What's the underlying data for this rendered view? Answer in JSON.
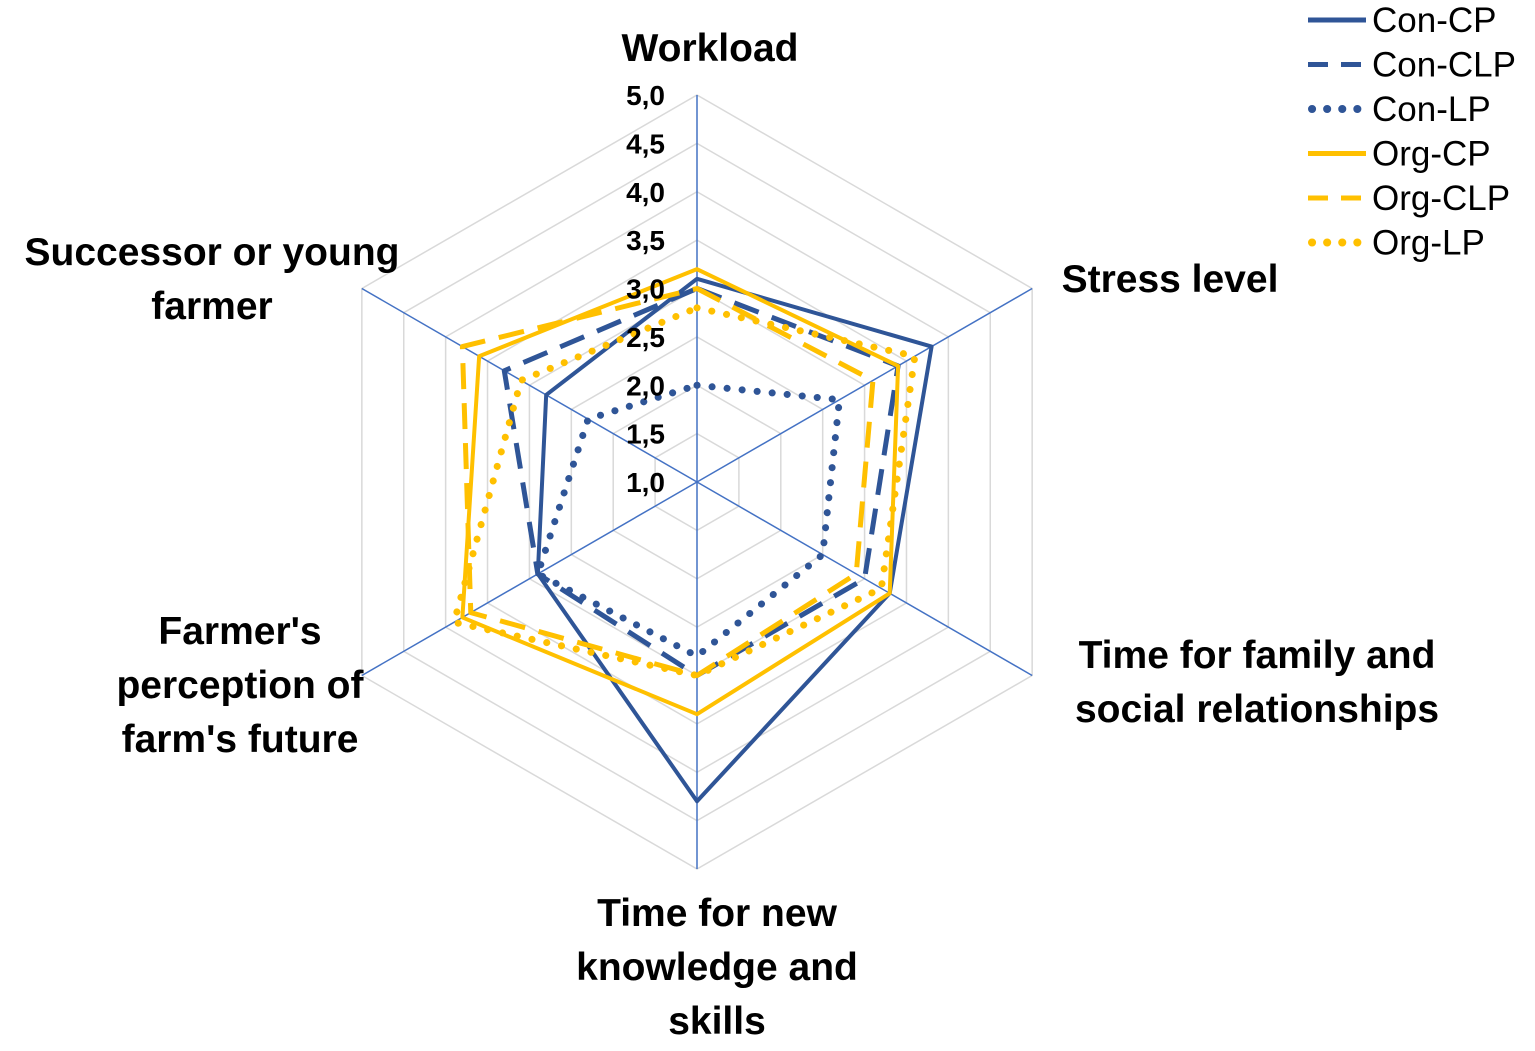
{
  "chart_data": {
    "type": "radar",
    "axes": [
      "Workload",
      "Stress level",
      "Time for family and social relationships",
      "Time for new knowledge and skills",
      "Farmer's perception of farm's future",
      "Successor or young farmer"
    ],
    "axis_label_lines": [
      [
        "Workload"
      ],
      [
        "Stress level"
      ],
      [
        "Time for family and",
        "social relationships"
      ],
      [
        "Time for new",
        "knowledge and",
        "skills"
      ],
      [
        "Farmer's",
        "perception of",
        "farm's future"
      ],
      [
        "Successor or young",
        "farmer"
      ]
    ],
    "rlim": [
      1.0,
      5.0
    ],
    "ticks": [
      "1,0",
      "1,5",
      "2,0",
      "2,5",
      "3,0",
      "3,5",
      "4,0",
      "4,5",
      "5,0"
    ],
    "grid": true,
    "legend_position": "top-right",
    "series": [
      {
        "name": "Con-CP",
        "color": "#2F5597",
        "dash": "solid",
        "values": [
          3.1,
          3.8,
          3.3,
          4.3,
          2.9,
          2.8
        ]
      },
      {
        "name": "Con-CLP",
        "color": "#2F5597",
        "dash": "dashed",
        "values": [
          3.0,
          3.4,
          3.0,
          3.0,
          2.9,
          3.3
        ]
      },
      {
        "name": "Con-LP",
        "color": "#2F5597",
        "dash": "dotted",
        "values": [
          2.0,
          2.7,
          2.5,
          2.8,
          2.9,
          2.3
        ]
      },
      {
        "name": "Org-CP",
        "color": "#FFC000",
        "dash": "solid",
        "values": [
          3.2,
          3.4,
          3.3,
          3.4,
          3.8,
          3.6
        ]
      },
      {
        "name": "Org-CLP",
        "color": "#FFC000",
        "dash": "dashed",
        "values": [
          3.0,
          3.1,
          2.9,
          3.0,
          3.7,
          3.8
        ]
      },
      {
        "name": "Org-LP",
        "color": "#FFC000",
        "dash": "dotted",
        "values": [
          2.8,
          3.6,
          3.2,
          3.0,
          3.9,
          3.1
        ]
      }
    ]
  }
}
